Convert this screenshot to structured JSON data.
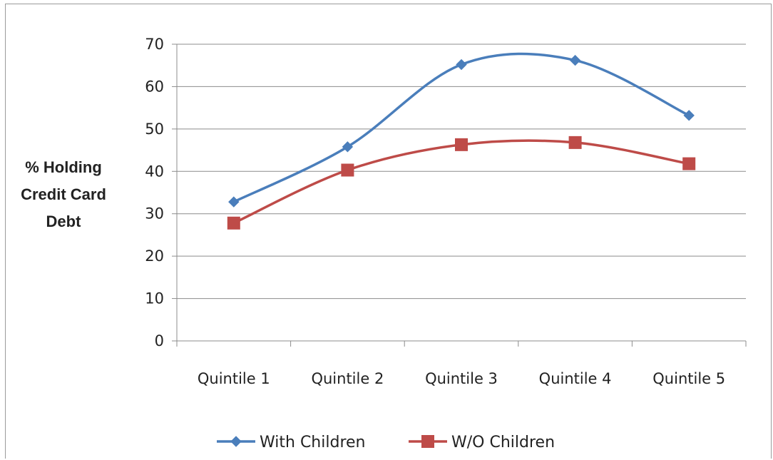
{
  "chart_data": {
    "type": "line",
    "title": "",
    "xlabel": "",
    "ylabel": "% Holding Credit Card Debt",
    "ylabel_lines": [
      "% Holding",
      "Credit Card",
      "Debt"
    ],
    "categories": [
      "Quintile 1",
      "Quintile 2",
      "Quintile 3",
      "Quintile 4",
      "Quintile 5"
    ],
    "ylim": [
      0,
      70
    ],
    "yticks": [
      0,
      10,
      20,
      30,
      40,
      50,
      60,
      70
    ],
    "grid": true,
    "legend": "bottom",
    "smooth": true,
    "series": [
      {
        "name": "With Children",
        "values": [
          32.8,
          45.8,
          65.2,
          66.2,
          53.2
        ],
        "color": "#4a7ebb",
        "marker": "diamond"
      },
      {
        "name": "W/O Children",
        "values": [
          27.8,
          40.3,
          46.3,
          46.8,
          41.8
        ],
        "color": "#be4b48",
        "marker": "square"
      }
    ]
  }
}
